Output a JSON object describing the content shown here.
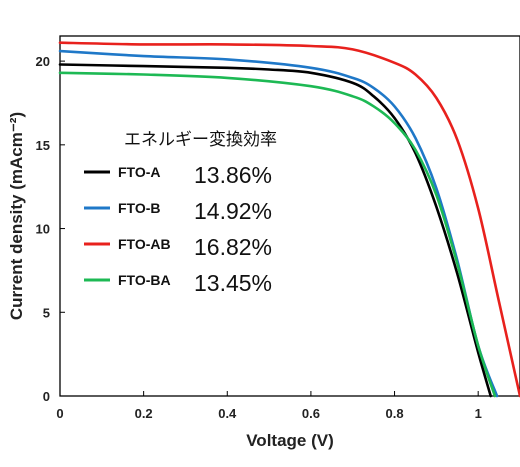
{
  "chart_data": {
    "type": "line",
    "xlabel": "Voltage (V)",
    "ylabel": "Current density (mAcm⁻²)",
    "xlim": [
      0,
      1.1
    ],
    "ylim": [
      0,
      21.5
    ],
    "x_ticks": [
      "0",
      "0.2",
      "0.4",
      "0.6",
      "0.8",
      "1"
    ],
    "y_ticks": [
      "0",
      "5",
      "10",
      "15",
      "20"
    ],
    "grid": false,
    "legend_title": "エネルギー変換効率",
    "legend_position": "center-left",
    "series": [
      {
        "name": "FTO-A",
        "efficiency": "13.86%",
        "color": "#000000",
        "x": [
          0,
          0.2,
          0.4,
          0.5,
          0.6,
          0.7,
          0.75,
          0.8,
          0.85,
          0.9,
          0.95,
          1.0,
          1.03
        ],
        "y": [
          19.8,
          19.7,
          19.6,
          19.5,
          19.3,
          18.7,
          17.9,
          16.6,
          14.5,
          11.3,
          7.3,
          2.6,
          0
        ]
      },
      {
        "name": "FTO-B",
        "efficiency": "14.92%",
        "color": "#1f78c8",
        "x": [
          0,
          0.2,
          0.4,
          0.6,
          0.7,
          0.75,
          0.8,
          0.85,
          0.9,
          0.95,
          1.0,
          1.045
        ],
        "y": [
          20.6,
          20.3,
          20.1,
          19.6,
          19.0,
          18.4,
          17.3,
          15.4,
          12.4,
          8.1,
          3.0,
          0
        ]
      },
      {
        "name": "FTO-AB",
        "efficiency": "16.82%",
        "color": "#e8211d",
        "x": [
          0,
          0.2,
          0.4,
          0.6,
          0.7,
          0.8,
          0.85,
          0.9,
          0.95,
          1.0,
          1.05,
          1.1
        ],
        "y": [
          21.1,
          21.0,
          21.0,
          20.9,
          20.7,
          19.9,
          19.2,
          17.8,
          15.3,
          11.2,
          5.6,
          0
        ]
      },
      {
        "name": "FTO-BA",
        "efficiency": "13.45%",
        "color": "#1db954",
        "x": [
          0,
          0.2,
          0.4,
          0.6,
          0.7,
          0.75,
          0.8,
          0.85,
          0.9,
          0.95,
          1.0,
          1.04
        ],
        "y": [
          19.3,
          19.2,
          19.0,
          18.5,
          17.9,
          17.3,
          16.3,
          14.7,
          12.0,
          7.9,
          3.0,
          0
        ]
      }
    ]
  }
}
